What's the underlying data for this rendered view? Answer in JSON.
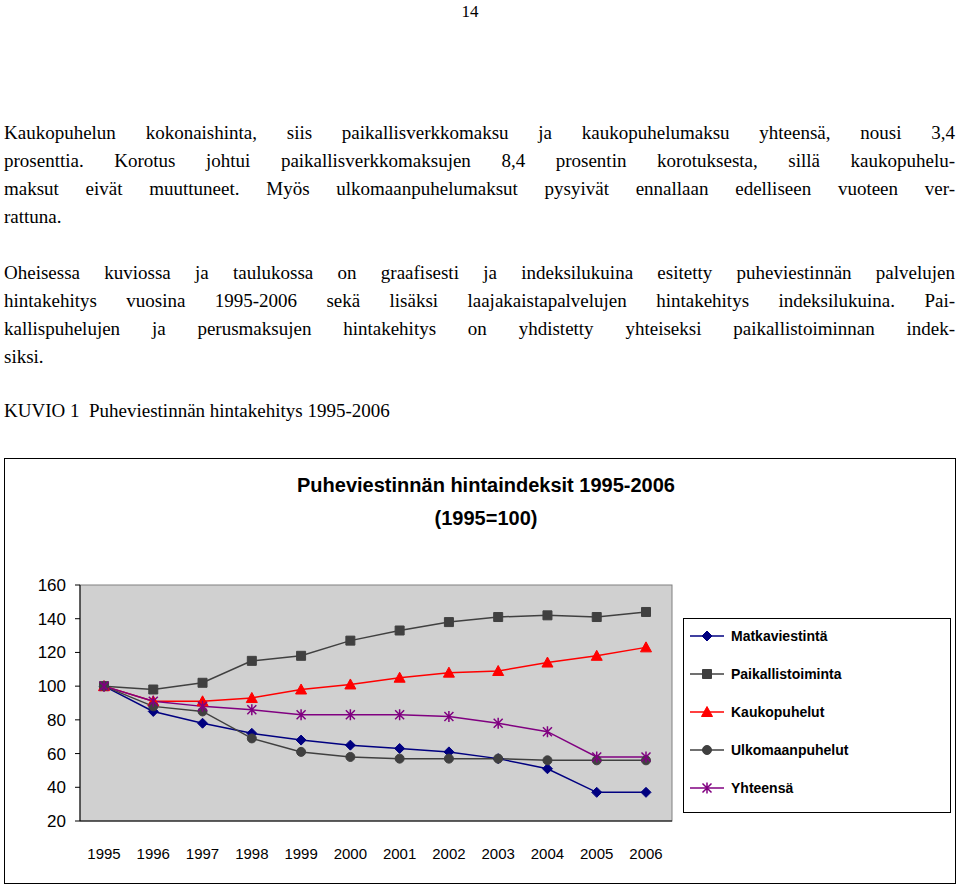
{
  "page_number": "14",
  "paragraphs": [
    [
      "Kaukopuhelun kokonaishinta, siis paikallisverkkomaksu ja kaukopuhelumaksu yhteensä, nousi 3,4",
      "prosenttia. Korotus johtui paikallisverkkomaksujen 8,4 prosentin korotuksesta, sillä kaukopuhelu-",
      "maksut eivät muuttuneet. Myös ulkomaanpuhelumaksut pysyivät ennallaan edelliseen vuoteen ver-",
      "rattuna."
    ],
    [
      "Oheisessa kuviossa ja taulukossa on graafisesti ja indeksilukuina esitetty puheviestinnän palvelujen",
      "hintakehitys vuosina 1995-2006 sekä lisäksi laajakaistapalvelujen hintakehitys indeksilukuina. Pai-",
      "kallispuhelujen ja perusmaksujen hintakehitys on yhdistetty  yhteiseksi paikallistoiminnan indek-",
      "siksi."
    ]
  ],
  "figure_caption": "KUVIO 1  Puheviestinnän hintakehitys 1995-2006",
  "chart_data": {
    "type": "line",
    "title": "Puheviestinnän hintaindeksit 1995-2006",
    "subtitle": "(1995=100)",
    "categories": [
      "1995",
      "1996",
      "1997",
      "1998",
      "1999",
      "2000",
      "2001",
      "2002",
      "2003",
      "2004",
      "2005",
      "2006"
    ],
    "series": [
      {
        "name": "Matkaviestintä",
        "color": "#000080",
        "marker": "diamond",
        "line_style": "solid",
        "values": [
          100,
          85,
          78,
          72,
          68,
          65,
          63,
          61,
          57,
          51,
          37,
          37
        ]
      },
      {
        "name": "Paikallistoiminta",
        "color": "#404040",
        "marker": "square",
        "line_style": "solid",
        "values": [
          100,
          98,
          102,
          115,
          118,
          127,
          133,
          138,
          141,
          142,
          141,
          144
        ]
      },
      {
        "name": "Kaukopuhelut",
        "color": "#ff0000",
        "marker": "triangle",
        "line_style": "solid",
        "values": [
          100,
          91,
          91,
          93,
          98,
          101,
          105,
          108,
          109,
          114,
          118,
          123
        ]
      },
      {
        "name": "Ulkomaanpuhelut",
        "color": "#404040",
        "marker": "circle",
        "line_style": "solid",
        "values": [
          100,
          88,
          85,
          69,
          61,
          58,
          57,
          57,
          57,
          56,
          56,
          56
        ]
      },
      {
        "name": "Yhteensä",
        "color": "#800080",
        "marker": "star",
        "line_style": "solid",
        "values": [
          100,
          91,
          88,
          86,
          83,
          83,
          83,
          82,
          78,
          73,
          58,
          58
        ]
      }
    ],
    "ylim": [
      20,
      160
    ],
    "yticks": [
      20,
      40,
      60,
      80,
      100,
      120,
      140,
      160
    ],
    "grid": false,
    "legend": "right"
  }
}
